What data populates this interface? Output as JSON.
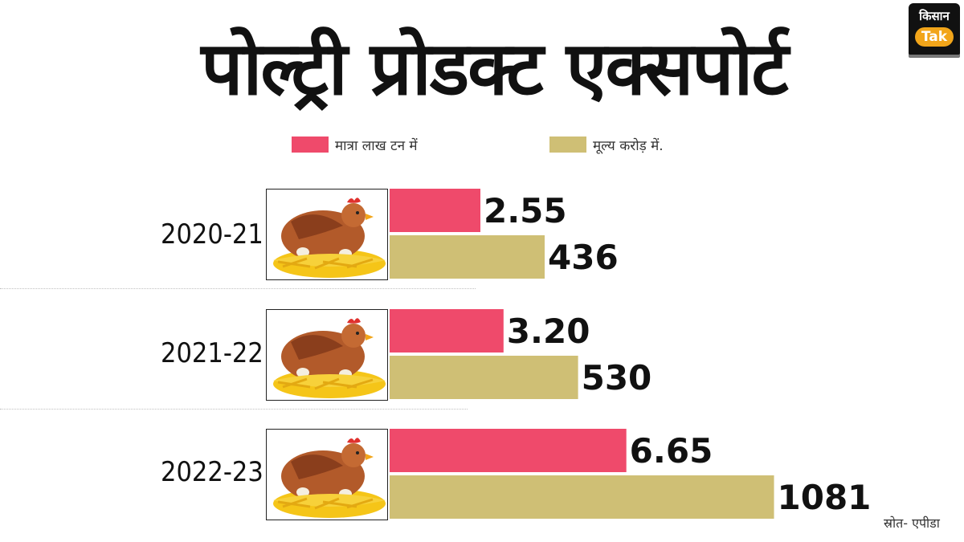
{
  "title": "पोल्ट्री प्रोडक्ट एक्सपोर्ट",
  "logo": {
    "line1": "किसान",
    "line2": "Tak"
  },
  "source": "स्रोत- एपीडा",
  "colors": {
    "quantity": "#ef4a6b",
    "value": "#cfbf75"
  },
  "icons": {
    "row_image": "hen-on-nest-icon"
  },
  "chart_data": {
    "type": "bar",
    "orientation": "horizontal",
    "categories": [
      "2020-21",
      "2021-22",
      "2022-23"
    ],
    "series": [
      {
        "name": "मात्रा लाख टन में",
        "values": [
          2.55,
          3.2,
          6.65
        ],
        "labels": [
          "2.55",
          "3.20",
          "6.65"
        ],
        "color": "#ef4a6b"
      },
      {
        "name": "मूल्य करोड़ में.",
        "values": [
          436,
          530,
          1081
        ],
        "labels": [
          "436",
          "530",
          "1081"
        ],
        "color": "#cfbf75"
      }
    ],
    "grid": false,
    "legend": "top"
  }
}
